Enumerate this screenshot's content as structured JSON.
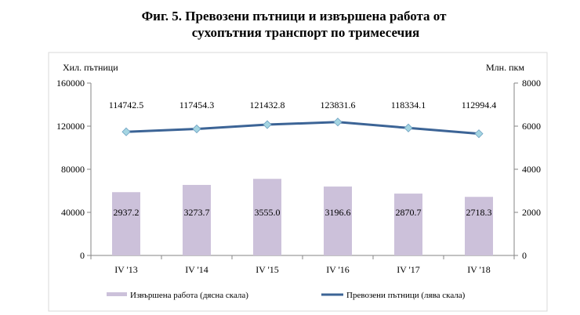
{
  "chart_data": {
    "type": "bar+line",
    "title_line1": "Фиг. 5. Превозени пътници и извършена работа от",
    "title_line2": "сухопътния транспорт по тримесечия",
    "ylabel_left": "Хил. пътници",
    "ylabel_right": "Млн. пкм",
    "ylim_left": [
      0,
      160000
    ],
    "ylim_right": [
      0,
      8000
    ],
    "yticks_left": [
      "0",
      "40000",
      "80000",
      "120000",
      "160000"
    ],
    "yticks_right": [
      "0",
      "2000",
      "4000",
      "6000",
      "8000"
    ],
    "categories": [
      "IV '13",
      "IV '14",
      "IV '15",
      "IV '16",
      "IV '17",
      "IV '18"
    ],
    "series": [
      {
        "name": "Извършена работа (дясна скала)",
        "type": "bar",
        "axis": "right",
        "color": "#ccc1da",
        "values": [
          2937.2,
          3273.7,
          3555.0,
          3196.6,
          2870.7,
          2718.3
        ],
        "labels": [
          "2937.2",
          "3273.7",
          "3555.0",
          "3196.6",
          "2870.7",
          "2718.3"
        ]
      },
      {
        "name": "Превозени пътници (лява скала)",
        "type": "line",
        "axis": "left",
        "color": "#3c6496",
        "marker_color": "#a5d5e2",
        "values": [
          114742.5,
          117454.3,
          121432.8,
          123831.6,
          118334.1,
          112994.4
        ],
        "labels": [
          "114742.5",
          "117454.3",
          "121432.8",
          "123831.6",
          "118334.1",
          "112994.4"
        ]
      }
    ],
    "legend_position": "bottom",
    "grid": false
  }
}
